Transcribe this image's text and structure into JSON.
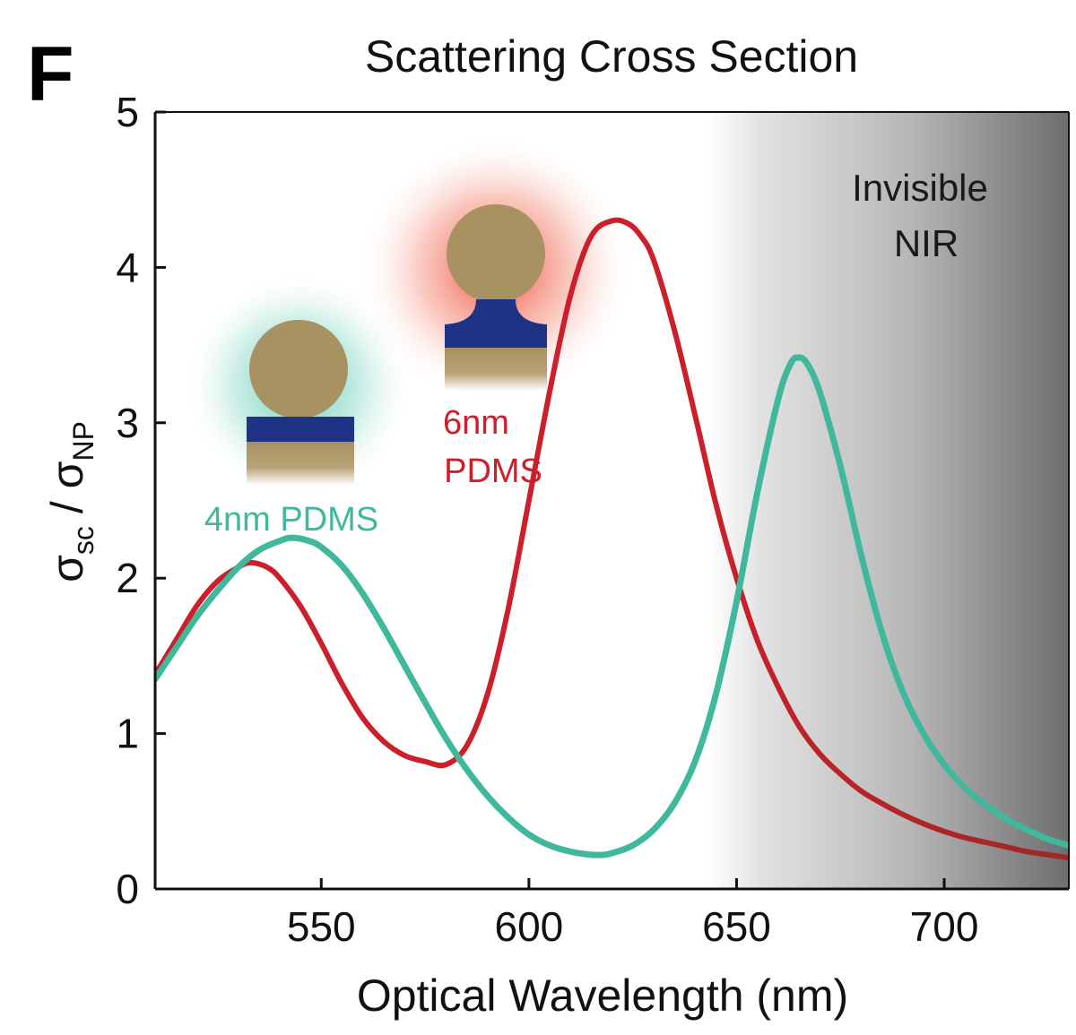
{
  "chart_data": {
    "type": "line",
    "panel_label": "F",
    "title": "Scattering Cross Section",
    "xlabel": "Optical Wavelength (nm)",
    "ylabel": {
      "sigma": "σ",
      "sub1": "sc",
      "sep": " / ",
      "sub2": "NP"
    },
    "xlim": [
      510,
      730
    ],
    "ylim": [
      0,
      5
    ],
    "xticks": [
      550,
      600,
      650,
      700
    ],
    "yticks": [
      0,
      1,
      2,
      3,
      4,
      5
    ],
    "nir_region": {
      "start": 643,
      "end": 730,
      "label_line1": "Invisible",
      "label_line2": "NIR"
    },
    "series": [
      {
        "name": "6nm PDMS",
        "label_line1": "6nm",
        "label_line2": "PDMS",
        "color": "#cc1f2b",
        "nir_color": "#9a2a24",
        "x": [
          510,
          515,
          520,
          525,
          530,
          533,
          537,
          540,
          545,
          550,
          555,
          560,
          565,
          570,
          575,
          580,
          585,
          590,
          595,
          600,
          605,
          610,
          615,
          620,
          624,
          627,
          630,
          635,
          640,
          645,
          650,
          655,
          660,
          665,
          670,
          675,
          680,
          685,
          690,
          695,
          700,
          705,
          710,
          715,
          720,
          725,
          730
        ],
        "y": [
          1.38,
          1.6,
          1.82,
          1.98,
          2.07,
          2.1,
          2.07,
          2.0,
          1.82,
          1.58,
          1.32,
          1.1,
          0.95,
          0.86,
          0.82,
          0.8,
          0.92,
          1.25,
          1.8,
          2.5,
          3.2,
          3.82,
          4.2,
          4.3,
          4.28,
          4.2,
          4.05,
          3.6,
          3.05,
          2.48,
          2.0,
          1.6,
          1.3,
          1.05,
          0.87,
          0.74,
          0.63,
          0.55,
          0.48,
          0.42,
          0.37,
          0.33,
          0.3,
          0.27,
          0.24,
          0.22,
          0.2
        ]
      },
      {
        "name": "4nm PDMS",
        "label": "4nm PDMS",
        "color": "#3fb89c",
        "x": [
          510,
          515,
          520,
          525,
          530,
          535,
          540,
          543,
          547,
          550,
          555,
          560,
          565,
          570,
          575,
          580,
          585,
          590,
          595,
          600,
          605,
          610,
          615,
          618,
          620,
          625,
          630,
          635,
          640,
          645,
          650,
          655,
          660,
          663,
          665,
          667,
          670,
          675,
          680,
          685,
          690,
          695,
          700,
          705,
          710,
          715,
          720,
          725,
          730
        ],
        "y": [
          1.35,
          1.55,
          1.75,
          1.92,
          2.07,
          2.18,
          2.24,
          2.26,
          2.24,
          2.2,
          2.08,
          1.9,
          1.68,
          1.44,
          1.2,
          0.97,
          0.77,
          0.6,
          0.46,
          0.35,
          0.28,
          0.24,
          0.22,
          0.22,
          0.23,
          0.28,
          0.38,
          0.55,
          0.82,
          1.25,
          1.85,
          2.55,
          3.15,
          3.38,
          3.42,
          3.38,
          3.2,
          2.72,
          2.15,
          1.65,
          1.27,
          1.0,
          0.8,
          0.65,
          0.54,
          0.45,
          0.38,
          0.32,
          0.28
        ]
      }
    ]
  }
}
